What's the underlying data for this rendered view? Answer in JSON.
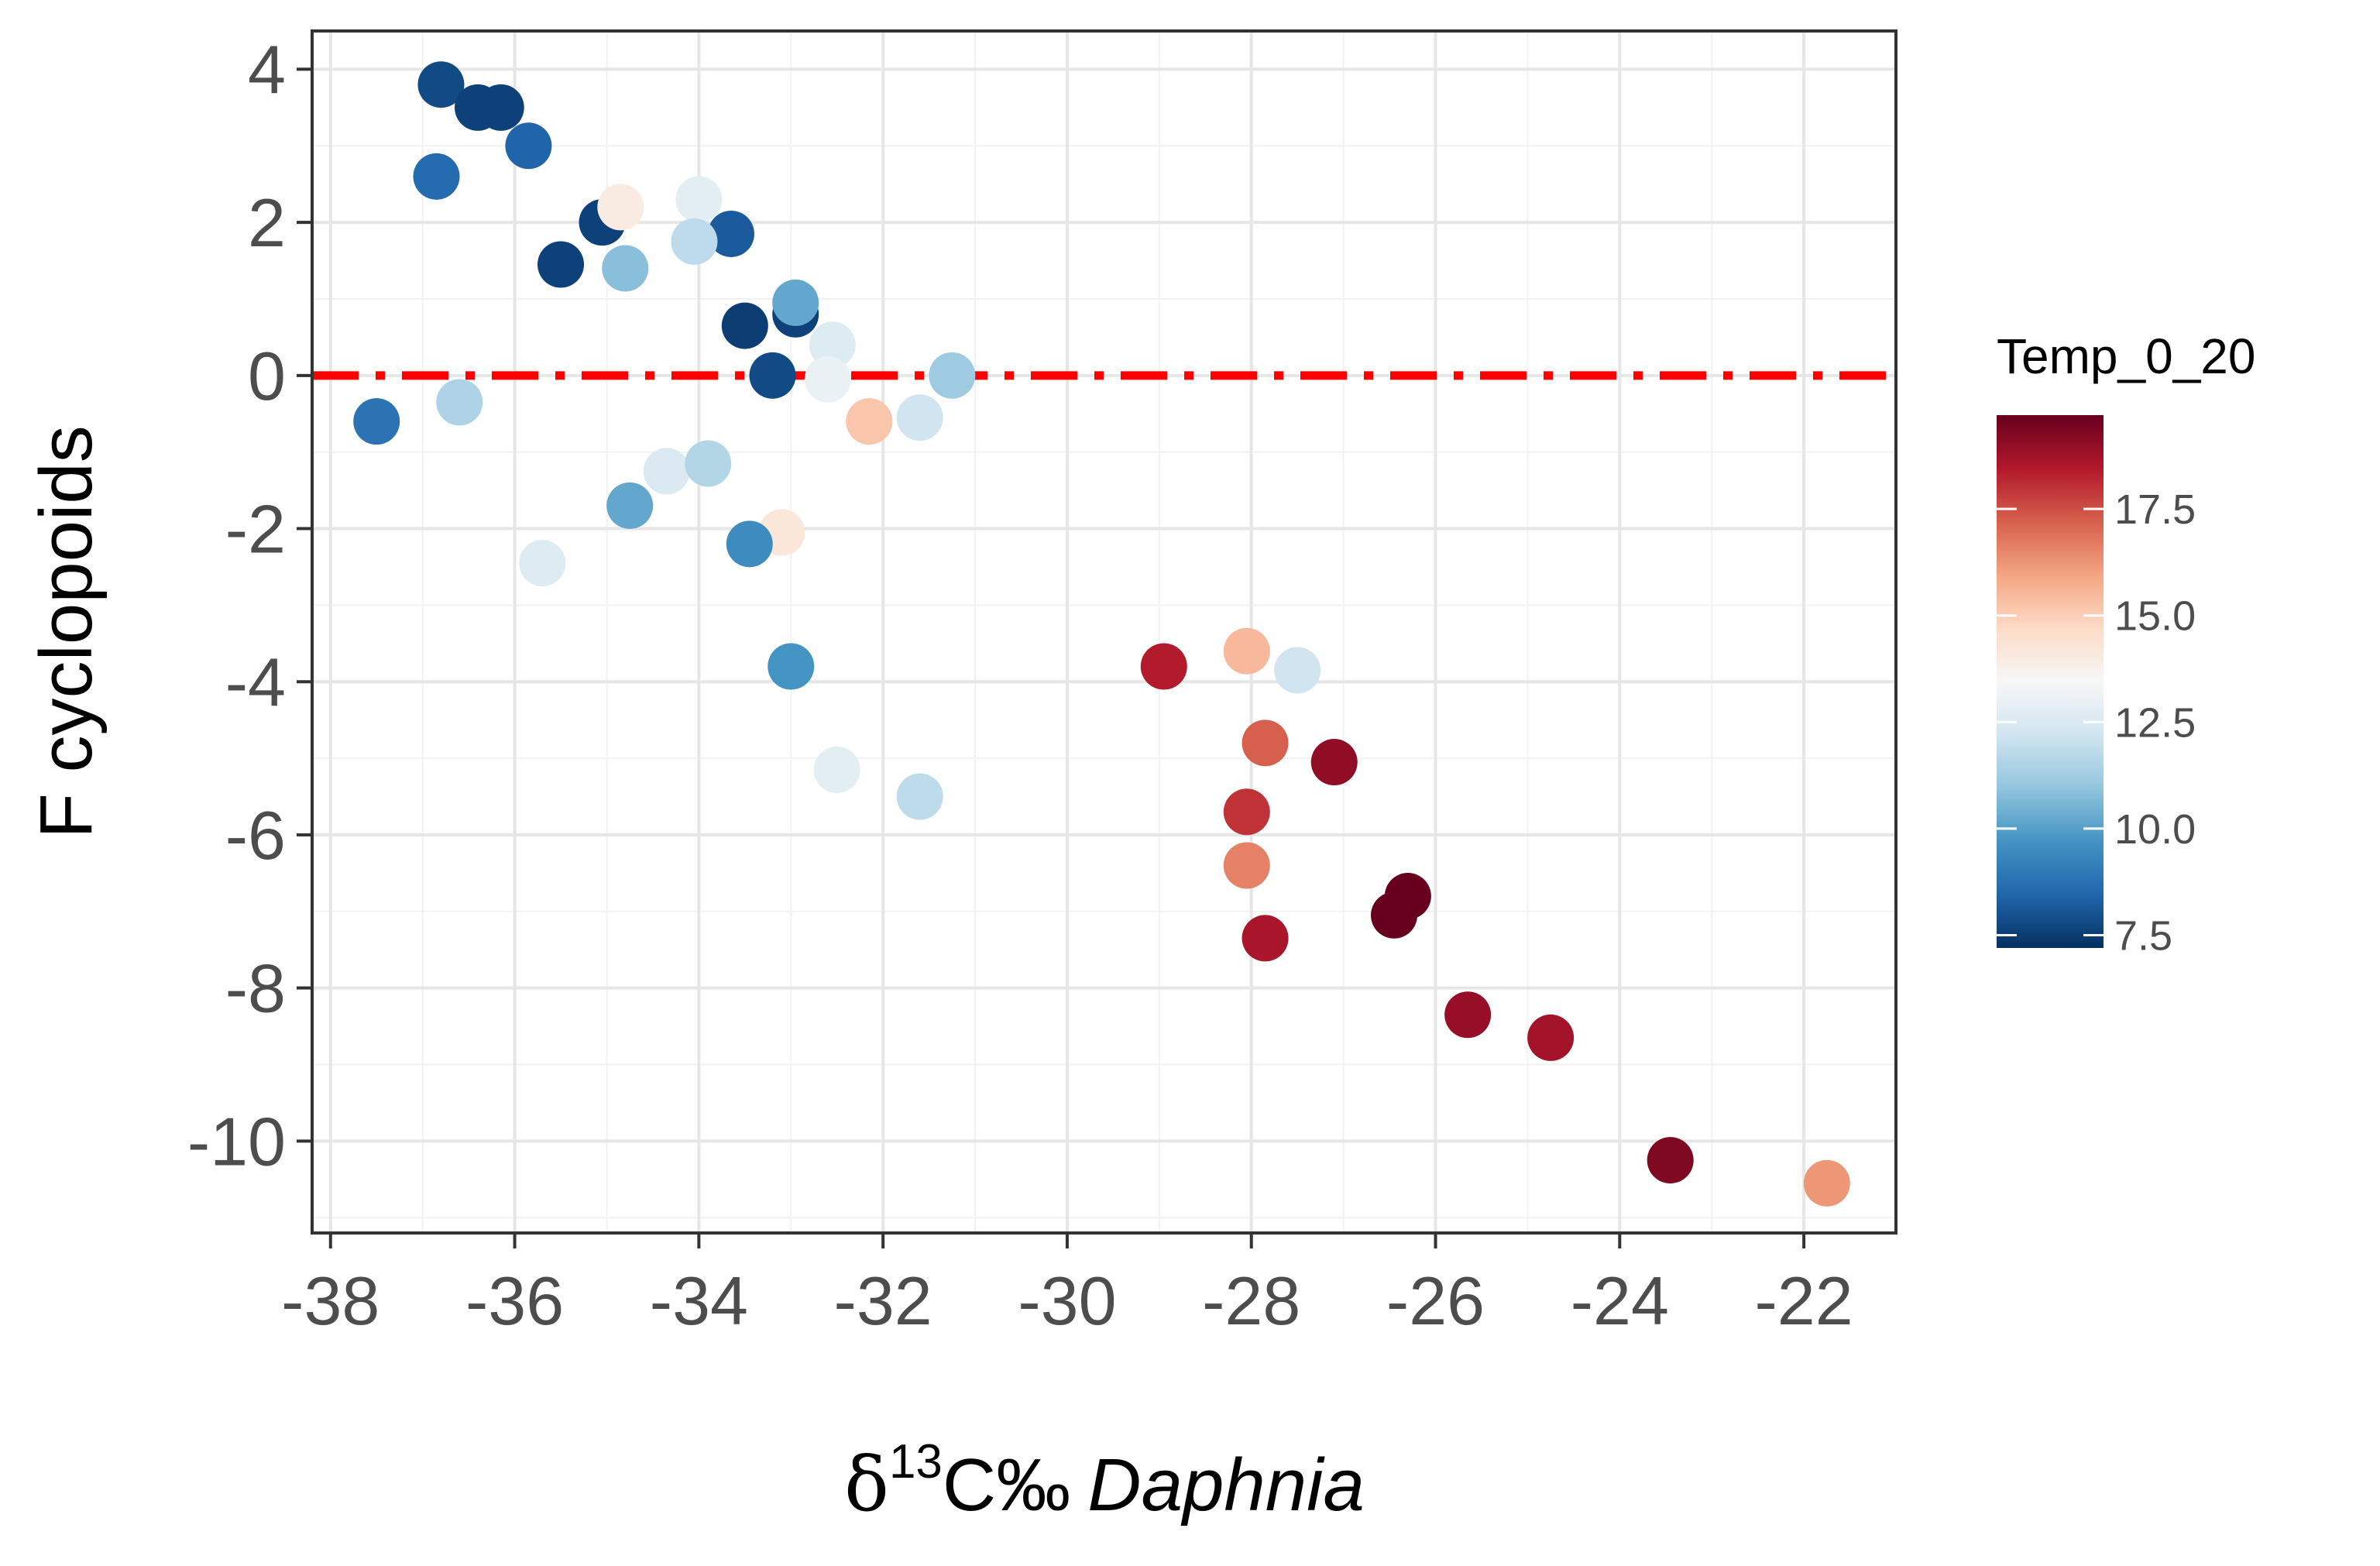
{
  "chart_data": {
    "type": "scatter",
    "title": "",
    "xlabel_parts": {
      "delta": "δ",
      "superscript": "13",
      "unit": "C‰",
      "taxon": "Daphnia"
    },
    "ylabel": "F cyclopoids",
    "xlim": [
      -38.2,
      -21
    ],
    "ylim": [
      -11.2,
      4.5
    ],
    "x_ticks": [
      -38,
      -36,
      -34,
      -32,
      -30,
      -28,
      -26,
      -24,
      -22
    ],
    "x_tick_labels": [
      "-38",
      "-36",
      "-34",
      "-32",
      "-30",
      "-28",
      "-26",
      "-24",
      "-22"
    ],
    "y_ticks": [
      4,
      2,
      0,
      -2,
      -4,
      -6,
      -8,
      -10
    ],
    "y_tick_labels": [
      "4",
      "2",
      "0",
      "-2",
      "-4",
      "-6",
      "-8",
      "-10"
    ],
    "grid": true,
    "reference_line": {
      "y": 0,
      "style": "dash-dot",
      "color": "#ff0000"
    },
    "colorbar": {
      "title": "Temp_0_20",
      "min": 7.2,
      "max": 19.7,
      "ticks": [
        7.5,
        10.0,
        12.5,
        15.0,
        17.5
      ],
      "tick_labels": [
        "7.5",
        "10.0",
        "12.5",
        "15.0",
        "17.5"
      ],
      "palette": [
        "#053061",
        "#2166ac",
        "#4393c3",
        "#92c5de",
        "#d1e5f0",
        "#f7f7f7",
        "#fddbc7",
        "#f4a582",
        "#d6604d",
        "#b2182b",
        "#67001f"
      ]
    },
    "points": [
      {
        "x": -36.8,
        "y": 3.8,
        "t": 7.8
      },
      {
        "x": -36.4,
        "y": 3.5,
        "t": 7.6
      },
      {
        "x": -36.15,
        "y": 3.5,
        "t": 7.6
      },
      {
        "x": -35.85,
        "y": 3.0,
        "t": 8.4
      },
      {
        "x": -36.85,
        "y": 2.6,
        "t": 8.6
      },
      {
        "x": -35.05,
        "y": 2.0,
        "t": 7.6
      },
      {
        "x": -34.85,
        "y": 2.2,
        "t": 14.0
      },
      {
        "x": -34.0,
        "y": 2.3,
        "t": 12.8
      },
      {
        "x": -33.65,
        "y": 1.85,
        "t": 8.2
      },
      {
        "x": -34.05,
        "y": 1.75,
        "t": 11.8
      },
      {
        "x": -35.5,
        "y": 1.45,
        "t": 7.6
      },
      {
        "x": -34.8,
        "y": 1.4,
        "t": 10.8
      },
      {
        "x": -33.5,
        "y": 0.65,
        "t": 7.5
      },
      {
        "x": -32.95,
        "y": 0.8,
        "t": 7.6
      },
      {
        "x": -32.95,
        "y": 0.95,
        "t": 10.2
      },
      {
        "x": -32.55,
        "y": 0.4,
        "t": 12.6
      },
      {
        "x": -33.2,
        "y": 0.0,
        "t": 7.8
      },
      {
        "x": -32.6,
        "y": -0.05,
        "t": 13.0
      },
      {
        "x": -31.25,
        "y": 0.0,
        "t": 11.2
      },
      {
        "x": -37.5,
        "y": -0.6,
        "t": 8.8
      },
      {
        "x": -36.6,
        "y": -0.35,
        "t": 11.5
      },
      {
        "x": -32.15,
        "y": -0.6,
        "t": 15.2
      },
      {
        "x": -31.6,
        "y": -0.55,
        "t": 12.2
      },
      {
        "x": -34.35,
        "y": -1.25,
        "t": 12.5
      },
      {
        "x": -33.9,
        "y": -1.15,
        "t": 11.6
      },
      {
        "x": -34.75,
        "y": -1.7,
        "t": 10.2
      },
      {
        "x": -33.1,
        "y": -2.05,
        "t": 14.2
      },
      {
        "x": -33.45,
        "y": -2.2,
        "t": 9.5
      },
      {
        "x": -35.7,
        "y": -2.45,
        "t": 12.6
      },
      {
        "x": -33.0,
        "y": -3.8,
        "t": 9.7
      },
      {
        "x": -32.5,
        "y": -5.15,
        "t": 12.8
      },
      {
        "x": -31.6,
        "y": -5.5,
        "t": 11.8
      },
      {
        "x": -28.95,
        "y": -3.8,
        "t": 18.4
      },
      {
        "x": -28.05,
        "y": -3.6,
        "t": 15.5
      },
      {
        "x": -27.5,
        "y": -3.85,
        "t": 12.2
      },
      {
        "x": -27.85,
        "y": -4.8,
        "t": 17.2
      },
      {
        "x": -27.1,
        "y": -5.05,
        "t": 19.0
      },
      {
        "x": -28.05,
        "y": -5.7,
        "t": 18.0
      },
      {
        "x": -28.05,
        "y": -6.4,
        "t": 16.6
      },
      {
        "x": -26.3,
        "y": -6.8,
        "t": 19.7
      },
      {
        "x": -26.45,
        "y": -7.05,
        "t": 19.7
      },
      {
        "x": -27.85,
        "y": -7.35,
        "t": 18.6
      },
      {
        "x": -25.65,
        "y": -8.35,
        "t": 18.9
      },
      {
        "x": -24.75,
        "y": -8.65,
        "t": 18.7
      },
      {
        "x": -23.45,
        "y": -10.25,
        "t": 19.3
      },
      {
        "x": -21.75,
        "y": -10.55,
        "t": 16.2
      }
    ]
  }
}
